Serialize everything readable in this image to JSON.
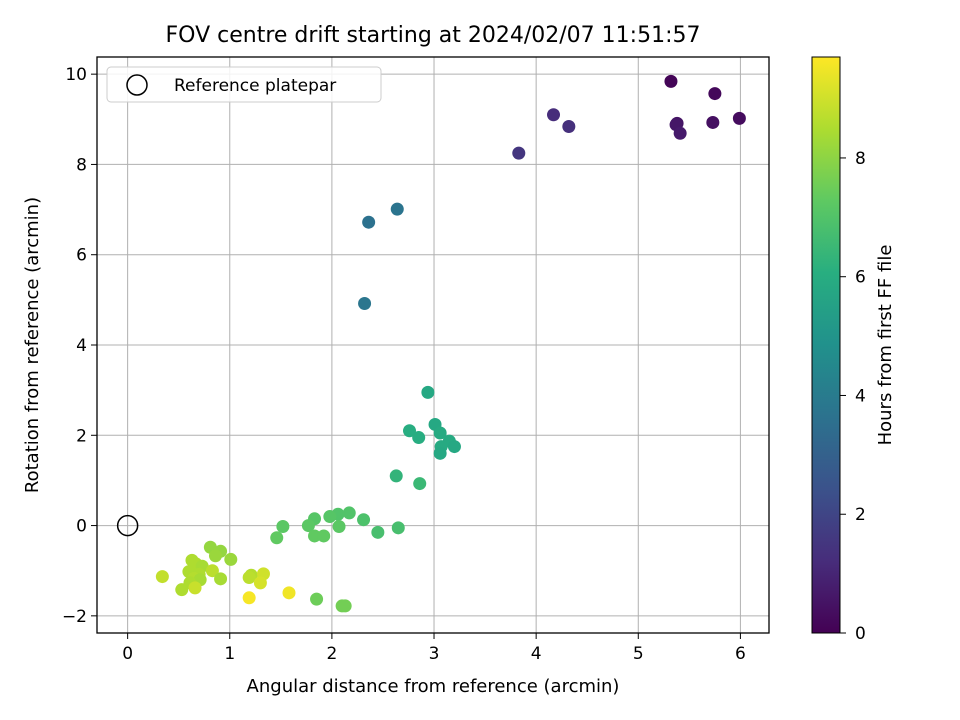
{
  "chart_data": {
    "type": "scatter",
    "title": "FOV centre drift starting at 2024/02/07 11:51:57",
    "xlabel": "Angular distance from reference (arcmin)",
    "ylabel": "Rotation from reference (arcmin)",
    "xlim": [
      -0.3,
      6.28
    ],
    "ylim": [
      -2.38,
      10.38
    ],
    "xticks": [
      0,
      1,
      2,
      3,
      4,
      5,
      6
    ],
    "yticks": [
      -2,
      0,
      2,
      4,
      6,
      8,
      10
    ],
    "grid": true,
    "colormap": "viridis",
    "colorbar": {
      "label": "Hours from first FF file",
      "range": [
        0,
        9.7
      ],
      "ticks": [
        0,
        2,
        4,
        6,
        8
      ]
    },
    "legend": {
      "position": "top-left",
      "entries": [
        {
          "label": "Reference platepar",
          "marker": "hollow-circle"
        }
      ]
    },
    "reference_point": {
      "x": 0,
      "y": 0
    },
    "points": [
      {
        "x": 5.32,
        "y": 9.84,
        "c": 0.1
      },
      {
        "x": 5.75,
        "y": 9.57,
        "c": 0.2
      },
      {
        "x": 5.99,
        "y": 9.02,
        "c": 0.3
      },
      {
        "x": 5.73,
        "y": 8.93,
        "c": 0.4
      },
      {
        "x": 5.38,
        "y": 8.91,
        "c": 0.5
      },
      {
        "x": 5.37,
        "y": 8.88,
        "c": 0.6
      },
      {
        "x": 5.41,
        "y": 8.69,
        "c": 0.7
      },
      {
        "x": 4.17,
        "y": 9.1,
        "c": 1.2
      },
      {
        "x": 4.32,
        "y": 8.84,
        "c": 1.3
      },
      {
        "x": 3.83,
        "y": 8.25,
        "c": 1.5
      },
      {
        "x": 2.36,
        "y": 6.72,
        "c": 3.6
      },
      {
        "x": 2.64,
        "y": 7.01,
        "c": 3.7
      },
      {
        "x": 2.32,
        "y": 4.92,
        "c": 3.8
      },
      {
        "x": 2.94,
        "y": 2.95,
        "c": 5.8
      },
      {
        "x": 3.01,
        "y": 2.24,
        "c": 5.8
      },
      {
        "x": 3.06,
        "y": 2.05,
        "c": 5.9
      },
      {
        "x": 2.76,
        "y": 2.1,
        "c": 6.0
      },
      {
        "x": 2.85,
        "y": 1.95,
        "c": 6.0
      },
      {
        "x": 3.15,
        "y": 1.87,
        "c": 5.9
      },
      {
        "x": 3.2,
        "y": 1.75,
        "c": 5.8
      },
      {
        "x": 3.07,
        "y": 1.75,
        "c": 5.9
      },
      {
        "x": 3.06,
        "y": 1.6,
        "c": 5.8
      },
      {
        "x": 2.63,
        "y": 1.1,
        "c": 6.3
      },
      {
        "x": 2.86,
        "y": 0.93,
        "c": 6.5
      },
      {
        "x": 2.17,
        "y": 0.28,
        "c": 7.0
      },
      {
        "x": 2.06,
        "y": 0.25,
        "c": 7.0
      },
      {
        "x": 1.98,
        "y": 0.2,
        "c": 7.1
      },
      {
        "x": 1.83,
        "y": 0.15,
        "c": 7.1
      },
      {
        "x": 2.31,
        "y": 0.13,
        "c": 6.9
      },
      {
        "x": 1.77,
        "y": 0.0,
        "c": 7.2
      },
      {
        "x": 1.52,
        "y": -0.02,
        "c": 7.2
      },
      {
        "x": 2.07,
        "y": -0.02,
        "c": 7.2
      },
      {
        "x": 2.65,
        "y": -0.05,
        "c": 6.8
      },
      {
        "x": 2.45,
        "y": -0.15,
        "c": 6.8
      },
      {
        "x": 1.83,
        "y": -0.23,
        "c": 7.3
      },
      {
        "x": 1.92,
        "y": -0.23,
        "c": 7.3
      },
      {
        "x": 1.46,
        "y": -0.27,
        "c": 7.3
      },
      {
        "x": 1.85,
        "y": -1.63,
        "c": 7.5
      },
      {
        "x": 2.1,
        "y": -1.78,
        "c": 7.6
      },
      {
        "x": 2.13,
        "y": -1.78,
        "c": 7.6
      },
      {
        "x": 0.81,
        "y": -0.48,
        "c": 8.1
      },
      {
        "x": 0.91,
        "y": -0.57,
        "c": 8.1
      },
      {
        "x": 0.86,
        "y": -0.67,
        "c": 8.2
      },
      {
        "x": 1.01,
        "y": -0.75,
        "c": 8.2
      },
      {
        "x": 0.63,
        "y": -0.77,
        "c": 8.5
      },
      {
        "x": 0.67,
        "y": -0.85,
        "c": 8.5
      },
      {
        "x": 0.73,
        "y": -0.9,
        "c": 8.4
      },
      {
        "x": 0.6,
        "y": -1.02,
        "c": 8.5
      },
      {
        "x": 0.83,
        "y": -1.0,
        "c": 8.7
      },
      {
        "x": 0.7,
        "y": -1.08,
        "c": 8.5
      },
      {
        "x": 0.65,
        "y": -1.17,
        "c": 8.6
      },
      {
        "x": 0.91,
        "y": -1.18,
        "c": 8.4
      },
      {
        "x": 0.71,
        "y": -1.2,
        "c": 8.4
      },
      {
        "x": 0.61,
        "y": -1.27,
        "c": 8.5
      },
      {
        "x": 0.34,
        "y": -1.13,
        "c": 8.8
      },
      {
        "x": 1.21,
        "y": -1.1,
        "c": 8.6
      },
      {
        "x": 1.19,
        "y": -1.15,
        "c": 8.7
      },
      {
        "x": 1.33,
        "y": -1.07,
        "c": 9.0
      },
      {
        "x": 1.3,
        "y": -1.27,
        "c": 9.1
      },
      {
        "x": 0.53,
        "y": -1.42,
        "c": 8.5
      },
      {
        "x": 0.66,
        "y": -1.38,
        "c": 8.9
      },
      {
        "x": 1.58,
        "y": -1.49,
        "c": 9.5
      },
      {
        "x": 1.19,
        "y": -1.6,
        "c": 9.6
      }
    ]
  }
}
